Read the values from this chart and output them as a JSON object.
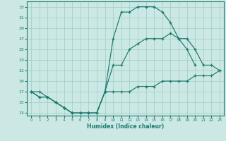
{
  "xlabel": "Humidex (Indice chaleur)",
  "xlim": [
    -0.5,
    23.5
  ],
  "ylim": [
    12.5,
    34
  ],
  "yticks": [
    13,
    15,
    17,
    19,
    21,
    23,
    25,
    27,
    29,
    31,
    33
  ],
  "xticks": [
    0,
    1,
    2,
    3,
    4,
    5,
    6,
    7,
    8,
    9,
    10,
    11,
    12,
    13,
    14,
    15,
    16,
    17,
    18,
    19,
    20,
    21,
    22,
    23
  ],
  "line_color": "#1a7a6e",
  "bg_color": "#cce8e4",
  "grid_color": "#9eccc7",
  "series1_x": [
    0,
    1,
    2,
    3,
    4,
    5,
    6,
    7,
    8,
    9,
    10,
    11,
    12,
    13,
    14,
    15,
    16,
    17,
    18,
    19,
    20,
    21
  ],
  "series1_y": [
    17,
    16,
    16,
    15,
    14,
    13,
    13,
    13,
    13,
    17,
    27,
    32,
    32,
    33,
    33,
    33,
    32,
    30,
    27,
    25,
    22,
    null
  ],
  "series2_x": [
    0,
    1,
    2,
    3,
    4,
    5,
    6,
    7,
    8,
    9,
    10,
    11,
    12,
    13,
    14,
    15,
    16,
    17,
    18,
    19,
    20,
    21,
    22,
    23
  ],
  "series2_y": [
    17,
    16,
    16,
    15,
    14,
    13,
    13,
    13,
    13,
    17,
    22,
    22,
    25,
    26,
    27,
    27,
    27,
    28,
    27,
    27,
    25,
    22,
    22,
    21
  ],
  "series3_x": [
    0,
    1,
    2,
    3,
    4,
    5,
    6,
    7,
    8,
    9,
    10,
    11,
    12,
    13,
    14,
    15,
    16,
    17,
    18,
    19,
    20,
    21,
    22,
    23
  ],
  "series3_y": [
    17,
    17,
    16,
    15,
    14,
    13,
    13,
    13,
    13,
    17,
    17,
    17,
    17,
    18,
    18,
    18,
    19,
    19,
    19,
    19,
    20,
    20,
    20,
    21
  ]
}
